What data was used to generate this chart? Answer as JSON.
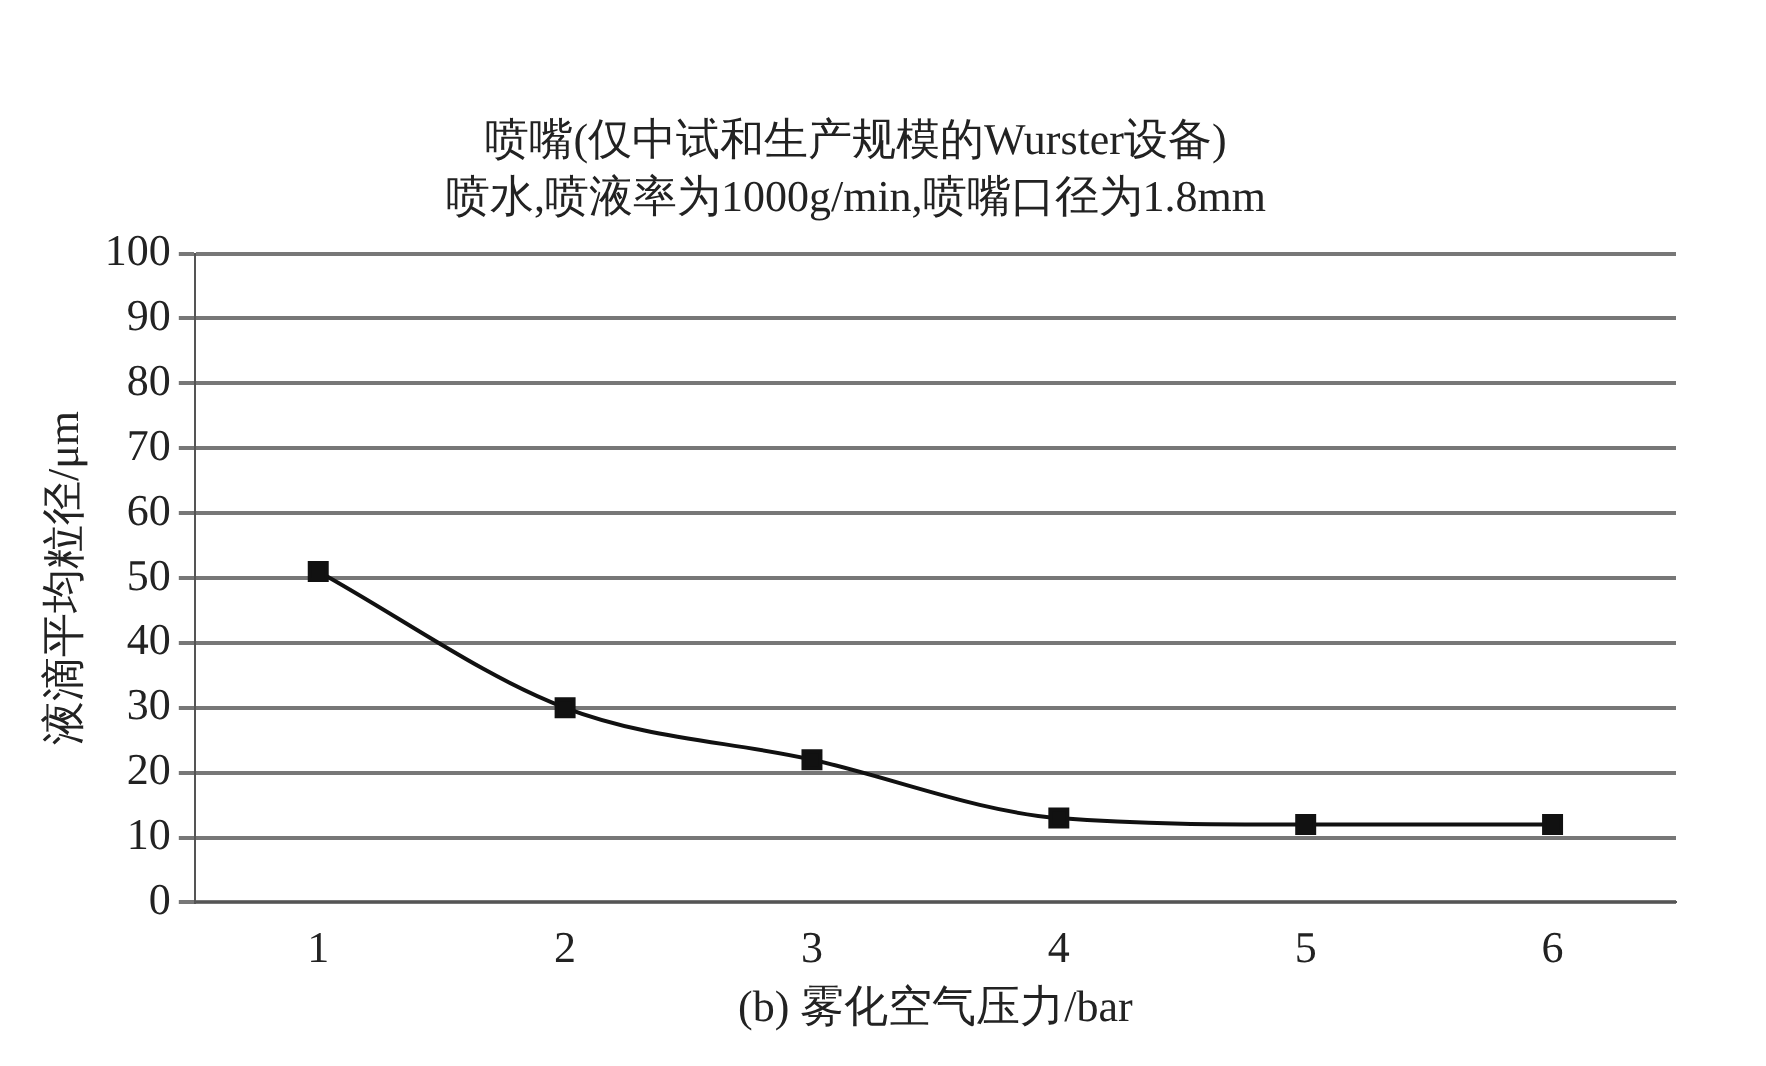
{
  "chart_data": {
    "type": "line",
    "title": "喷嘴(仅中试和生产规模的Wurster设备)",
    "subtitle": "喷水,喷液率为1000g/min,喷嘴口径为1.8mm",
    "xlabel": "(b) 雾化空气压力/bar",
    "ylabel": "液滴平均粒径/μm",
    "categories": [
      "1",
      "2",
      "3",
      "4",
      "5",
      "6"
    ],
    "series": [
      {
        "color": "#111111",
        "values": [
          51,
          30,
          22,
          13,
          12,
          12
        ]
      }
    ],
    "ylim": [
      0,
      100
    ],
    "yticks": [
      0,
      10,
      20,
      30,
      40,
      50,
      60,
      70,
      80,
      90,
      100
    ],
    "grid": "y",
    "legend": false,
    "marker": "square",
    "line_style": "solid"
  }
}
